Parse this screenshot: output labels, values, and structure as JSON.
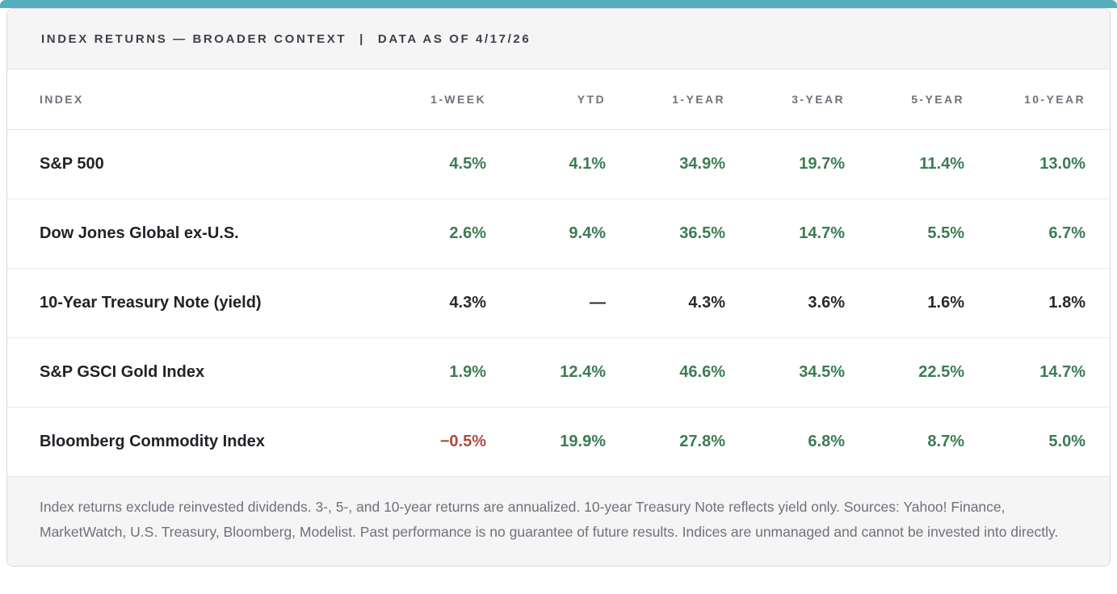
{
  "colors": {
    "accent_teal": "#55aebb",
    "positive_green": "#3c7c53",
    "negative_red": "#ad4a43",
    "neutral_dark": "#26292e",
    "panel_gray": "#f5f5f6"
  },
  "header": {
    "title": "INDEX RETURNS — BROADER CONTEXT",
    "divider": "|",
    "as_of": "DATA AS OF 4/17/26"
  },
  "table": {
    "columns": [
      "INDEX",
      "1-WEEK",
      "YTD",
      "1-YEAR",
      "3-YEAR",
      "5-YEAR",
      "10-YEAR"
    ],
    "rows": [
      {
        "index": "S&P 500",
        "values": [
          "4.5%",
          "4.1%",
          "34.9%",
          "19.7%",
          "11.4%",
          "13.0%"
        ],
        "tones": [
          "pos",
          "pos",
          "pos",
          "pos",
          "pos",
          "pos"
        ]
      },
      {
        "index": "Dow Jones Global ex-U.S.",
        "values": [
          "2.6%",
          "9.4%",
          "36.5%",
          "14.7%",
          "5.5%",
          "6.7%"
        ],
        "tones": [
          "pos",
          "pos",
          "pos",
          "pos",
          "pos",
          "pos"
        ]
      },
      {
        "index": "10-Year Treasury Note (yield)",
        "values": [
          "4.3%",
          "—",
          "4.3%",
          "3.6%",
          "1.6%",
          "1.8%"
        ],
        "tones": [
          "neutral",
          "neutral",
          "neutral",
          "neutral",
          "neutral",
          "neutral"
        ]
      },
      {
        "index": "S&P GSCI Gold Index",
        "values": [
          "1.9%",
          "12.4%",
          "46.6%",
          "34.5%",
          "22.5%",
          "14.7%"
        ],
        "tones": [
          "pos",
          "pos",
          "pos",
          "pos",
          "pos",
          "pos"
        ]
      },
      {
        "index": "Bloomberg Commodity Index",
        "values": [
          "−0.5%",
          "19.9%",
          "27.8%",
          "6.8%",
          "8.7%",
          "5.0%"
        ],
        "tones": [
          "neg",
          "pos",
          "pos",
          "pos",
          "pos",
          "pos"
        ]
      }
    ]
  },
  "footnote": "Index returns exclude reinvested dividends. 3-, 5-, and 10-year returns are annualized. 10-year Treasury Note reflects yield only. Sources: Yahoo! Finance, MarketWatch, U.S. Treasury, Bloomberg, Modelist. Past performance is no guarantee of future results. Indices are unmanaged and cannot be invested into directly.",
  "chart_data": {
    "type": "table",
    "title": "INDEX RETURNS — BROADER CONTEXT | DATA AS OF 4/17/26",
    "columns": [
      "INDEX",
      "1-WEEK",
      "YTD",
      "1-YEAR",
      "3-YEAR",
      "5-YEAR",
      "10-YEAR"
    ],
    "rows": [
      [
        "S&P 500",
        "4.5%",
        "4.1%",
        "34.9%",
        "19.7%",
        "11.4%",
        "13.0%"
      ],
      [
        "Dow Jones Global ex-U.S.",
        "2.6%",
        "9.4%",
        "36.5%",
        "14.7%",
        "5.5%",
        "6.7%"
      ],
      [
        "10-Year Treasury Note (yield)",
        "4.3%",
        "—",
        "4.3%",
        "3.6%",
        "1.6%",
        "1.8%"
      ],
      [
        "S&P GSCI Gold Index",
        "1.9%",
        "12.4%",
        "46.6%",
        "34.5%",
        "22.5%",
        "14.7%"
      ],
      [
        "Bloomberg Commodity Index",
        "−0.5%",
        "19.9%",
        "27.8%",
        "6.8%",
        "8.7%",
        "5.0%"
      ]
    ],
    "value_color_coding": "green = positive return, red = negative return, dark = yield/neutral"
  }
}
